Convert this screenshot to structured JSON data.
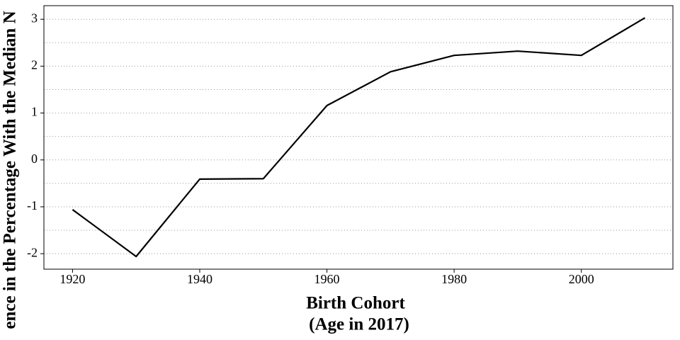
{
  "chart_data": {
    "type": "line",
    "x_label": [
      "Birth Cohort",
      "(Age in 2017)"
    ],
    "y_label": "ence in the Percentage With the Median N",
    "x": [
      1920,
      1930,
      1940,
      1950,
      1960,
      1970,
      1980,
      1990,
      2000,
      2010
    ],
    "series": [
      {
        "color": "#000000",
        "values": [
          -1.06,
          -2.06,
          -0.41,
          -0.4,
          1.16,
          1.88,
          2.23,
          2.32,
          2.23,
          3.03
        ]
      }
    ],
    "xlim": [
      1915.5,
      2014.4
    ],
    "xticks": [
      1920,
      1940,
      1960,
      1980,
      2000
    ],
    "ylim": [
      -2.33,
      3.29
    ],
    "yticks": [
      -2,
      -1,
      0,
      1,
      2,
      3
    ],
    "yminorticks": [
      -1.5,
      -0.5,
      0.5,
      1.5,
      2.5
    ],
    "grid": true
  }
}
